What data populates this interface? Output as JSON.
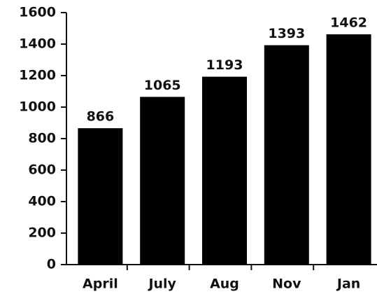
{
  "chart_data": {
    "type": "bar",
    "categories": [
      "April",
      "July",
      "Aug",
      "Nov",
      "Jan"
    ],
    "values": [
      866,
      1065,
      1193,
      1393,
      1462
    ],
    "color": "#000000",
    "ylim": [
      0,
      1600
    ],
    "yticks": [
      0,
      200,
      400,
      600,
      800,
      1000,
      1200,
      1400,
      1600
    ],
    "grid": false
  }
}
